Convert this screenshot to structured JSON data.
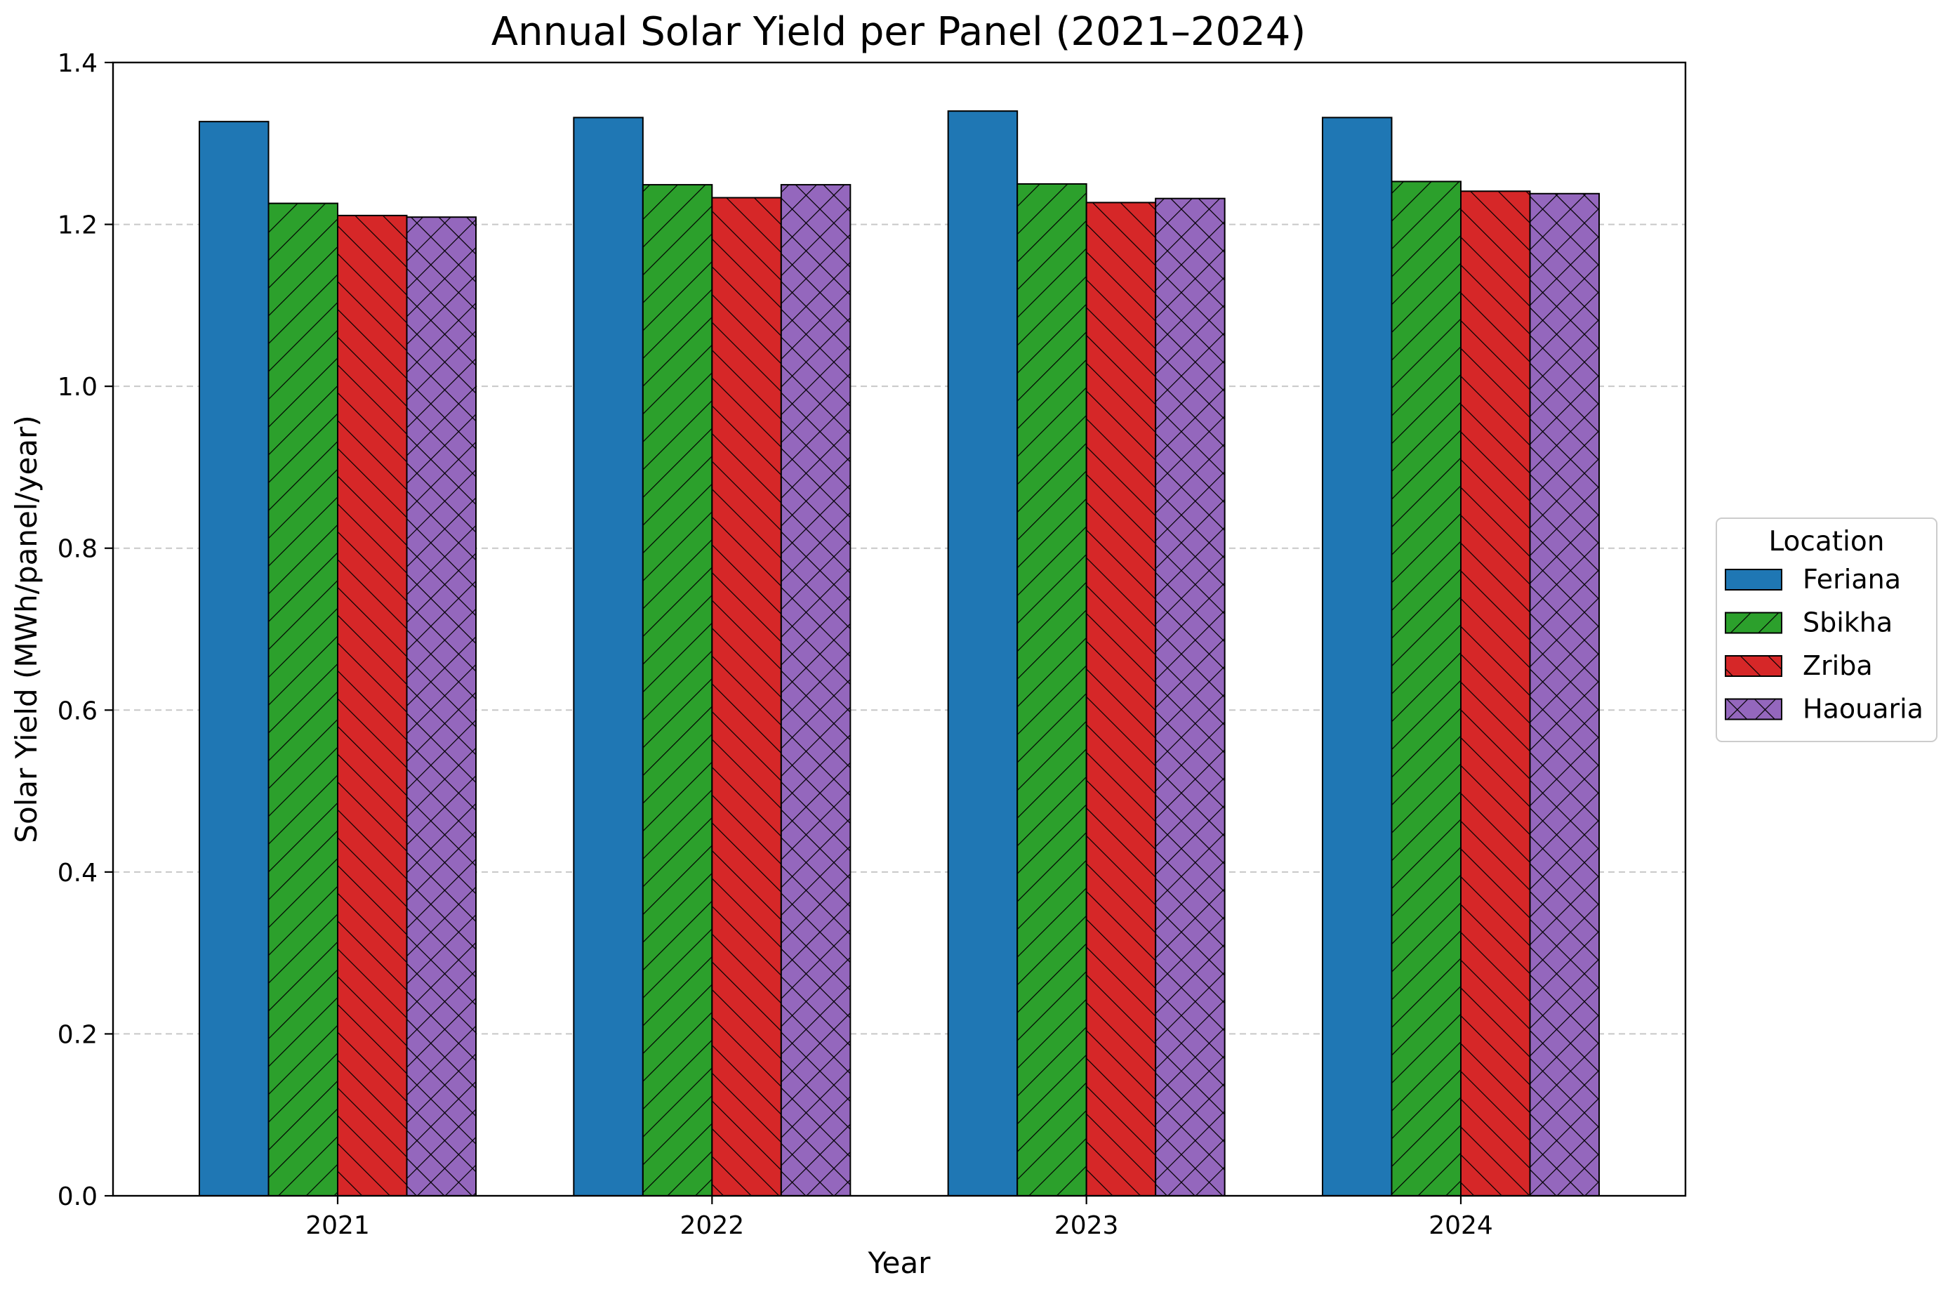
{
  "chart_data": {
    "type": "bar",
    "title": "Annual Solar Yield per Panel (2021–2024)",
    "xlabel": "Year",
    "ylabel": "Solar Yield (MWh/panel/year)",
    "categories": [
      "2021",
      "2022",
      "2023",
      "2024"
    ],
    "ylim": [
      0,
      1.4
    ],
    "yticks": [
      "0.0",
      "0.2",
      "0.4",
      "0.6",
      "0.8",
      "1.0",
      "1.2",
      "1.4"
    ],
    "grid": "horizontal dashed",
    "legend": {
      "title": "Location",
      "placement": "right"
    },
    "series": [
      {
        "name": "Feriana",
        "color": "#1f77b4",
        "hatch": "none",
        "values": [
          1.327,
          1.332,
          1.34,
          1.332
        ]
      },
      {
        "name": "Sbikha",
        "color": "#2ca02c",
        "hatch": "forward",
        "values": [
          1.226,
          1.249,
          1.25,
          1.253
        ]
      },
      {
        "name": "Zriba",
        "color": "#d62728",
        "hatch": "backward",
        "values": [
          1.211,
          1.233,
          1.227,
          1.241
        ]
      },
      {
        "name": "Haouaria",
        "color": "#9467bd",
        "hatch": "cross",
        "values": [
          1.209,
          1.249,
          1.232,
          1.238
        ]
      }
    ]
  }
}
